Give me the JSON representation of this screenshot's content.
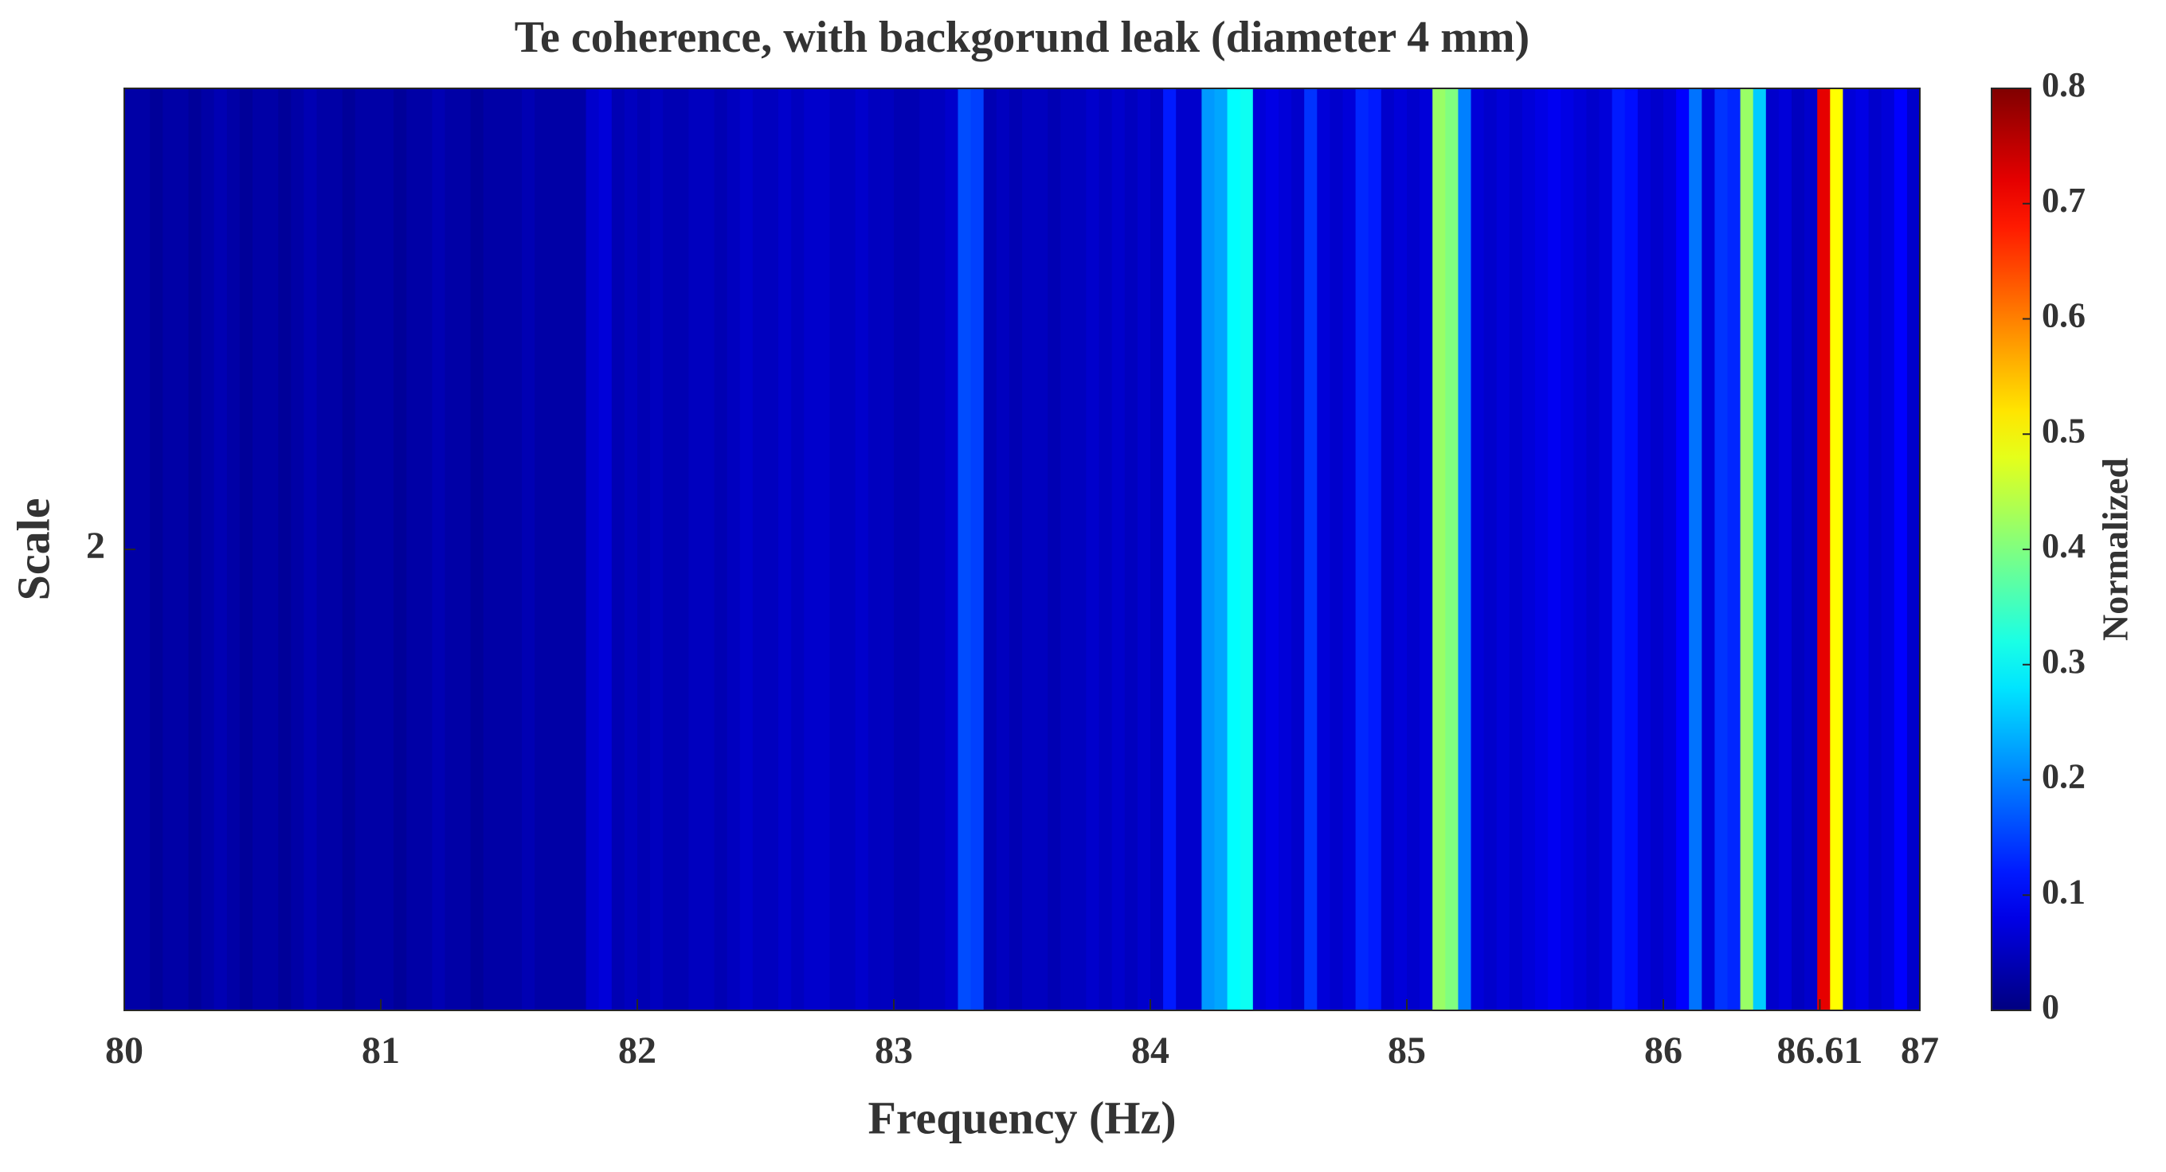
{
  "chart_data": {
    "type": "heatmap",
    "title": "Te coherence, with backgorund leak (diameter 4 mm)",
    "xlabel": "Frequency (Hz)",
    "ylabel": "Scale",
    "colorbar_label": "Normalized",
    "colormap": "jet",
    "xlim": [
      80,
      87
    ],
    "xticks": [
      80,
      81,
      82,
      83,
      84,
      85,
      86,
      86.61,
      87
    ],
    "ylim": [
      1.5,
      2.5
    ],
    "yticks": [
      2
    ],
    "clim": [
      0,
      0.8
    ],
    "cticks": [
      0,
      0.1,
      0.2,
      0.3,
      0.4,
      0.5,
      0.6,
      0.7,
      0.8
    ],
    "bin_width": 0.05,
    "x": [
      80.025,
      80.075,
      80.125,
      80.175,
      80.225,
      80.275,
      80.325,
      80.375,
      80.425,
      80.475,
      80.525,
      80.575,
      80.625,
      80.675,
      80.725,
      80.775,
      80.825,
      80.875,
      80.925,
      80.975,
      81.025,
      81.075,
      81.125,
      81.175,
      81.225,
      81.275,
      81.325,
      81.375,
      81.425,
      81.475,
      81.525,
      81.575,
      81.625,
      81.675,
      81.725,
      81.775,
      81.825,
      81.875,
      81.925,
      81.975,
      82.025,
      82.075,
      82.125,
      82.175,
      82.225,
      82.275,
      82.325,
      82.375,
      82.425,
      82.475,
      82.525,
      82.575,
      82.625,
      82.675,
      82.725,
      82.775,
      82.825,
      82.875,
      82.925,
      82.975,
      83.025,
      83.075,
      83.125,
      83.175,
      83.225,
      83.275,
      83.325,
      83.375,
      83.425,
      83.475,
      83.525,
      83.575,
      83.625,
      83.675,
      83.725,
      83.775,
      83.825,
      83.875,
      83.925,
      83.975,
      84.025,
      84.075,
      84.125,
      84.175,
      84.225,
      84.275,
      84.325,
      84.375,
      84.425,
      84.475,
      84.525,
      84.575,
      84.625,
      84.675,
      84.725,
      84.775,
      84.825,
      84.875,
      84.925,
      84.975,
      85.025,
      85.075,
      85.125,
      85.175,
      85.225,
      85.275,
      85.325,
      85.375,
      85.425,
      85.475,
      85.525,
      85.575,
      85.625,
      85.675,
      85.725,
      85.775,
      85.825,
      85.875,
      85.925,
      85.975,
      86.025,
      86.075,
      86.125,
      86.175,
      86.225,
      86.275,
      86.325,
      86.375,
      86.425,
      86.475,
      86.525,
      86.575,
      86.625,
      86.675,
      86.725,
      86.775,
      86.825,
      86.875,
      86.925,
      86.975
    ],
    "values": [
      0.03,
      0.03,
      0.02,
      0.03,
      0.03,
      0.02,
      0.03,
      0.04,
      0.03,
      0.02,
      0.03,
      0.03,
      0.02,
      0.03,
      0.04,
      0.03,
      0.03,
      0.02,
      0.03,
      0.03,
      0.03,
      0.02,
      0.03,
      0.03,
      0.04,
      0.03,
      0.03,
      0.02,
      0.03,
      0.03,
      0.03,
      0.04,
      0.03,
      0.03,
      0.03,
      0.03,
      0.06,
      0.07,
      0.04,
      0.05,
      0.04,
      0.05,
      0.04,
      0.04,
      0.05,
      0.05,
      0.04,
      0.05,
      0.06,
      0.05,
      0.05,
      0.06,
      0.05,
      0.06,
      0.06,
      0.05,
      0.05,
      0.06,
      0.05,
      0.05,
      0.04,
      0.04,
      0.05,
      0.05,
      0.06,
      0.16,
      0.15,
      0.04,
      0.05,
      0.04,
      0.05,
      0.05,
      0.04,
      0.05,
      0.05,
      0.06,
      0.05,
      0.06,
      0.05,
      0.06,
      0.05,
      0.12,
      0.06,
      0.06,
      0.22,
      0.23,
      0.3,
      0.31,
      0.07,
      0.08,
      0.07,
      0.06,
      0.14,
      0.07,
      0.06,
      0.07,
      0.13,
      0.12,
      0.06,
      0.07,
      0.06,
      0.07,
      0.42,
      0.4,
      0.2,
      0.07,
      0.06,
      0.07,
      0.06,
      0.07,
      0.08,
      0.09,
      0.08,
      0.07,
      0.06,
      0.07,
      0.12,
      0.11,
      0.07,
      0.06,
      0.07,
      0.1,
      0.19,
      0.07,
      0.14,
      0.13,
      0.42,
      0.26,
      0.06,
      0.07,
      0.05,
      0.06,
      0.72,
      0.5,
      0.07,
      0.08,
      0.06,
      0.07,
      0.1,
      0.06
    ]
  }
}
